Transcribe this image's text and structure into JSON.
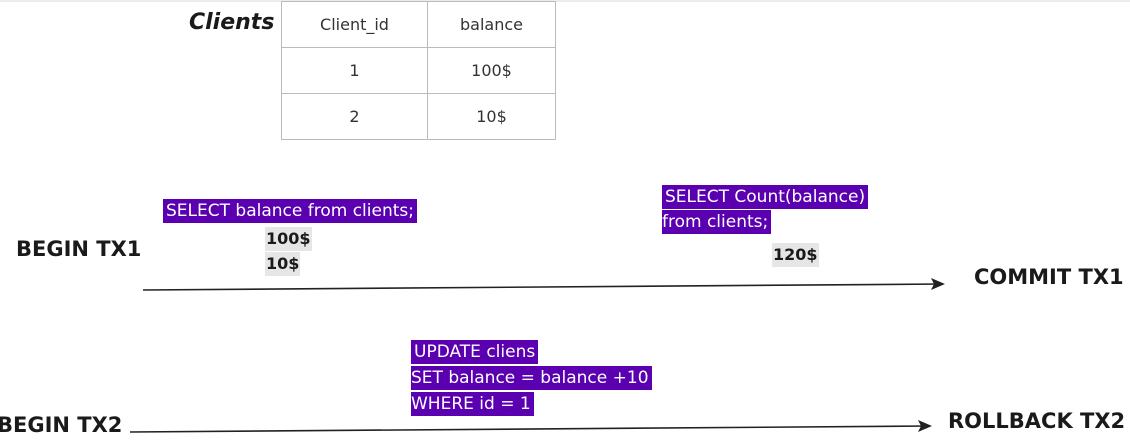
{
  "table": {
    "title": "Clients",
    "headers": [
      "Client_id",
      "balance"
    ],
    "rows": [
      [
        "1",
        "100$"
      ],
      [
        "2",
        "10$"
      ]
    ]
  },
  "tx1": {
    "begin": "BEGIN TX1",
    "end": "COMMIT TX1",
    "query1": "SELECT balance from clients;",
    "results1": [
      "100$",
      "10$"
    ],
    "query2_lines": [
      "SELECT Count(balance)",
      "from clients;"
    ],
    "result2": "120$"
  },
  "tx2": {
    "begin": "BEGIN TX2",
    "end": "ROLLBACK TX2",
    "query_lines": [
      "UPDATE cliens",
      "SET balance = balance +10",
      "WHERE id = 1"
    ]
  },
  "colors": {
    "query_bg": "#5b00b0",
    "result_bg": "#e6e6e6"
  }
}
